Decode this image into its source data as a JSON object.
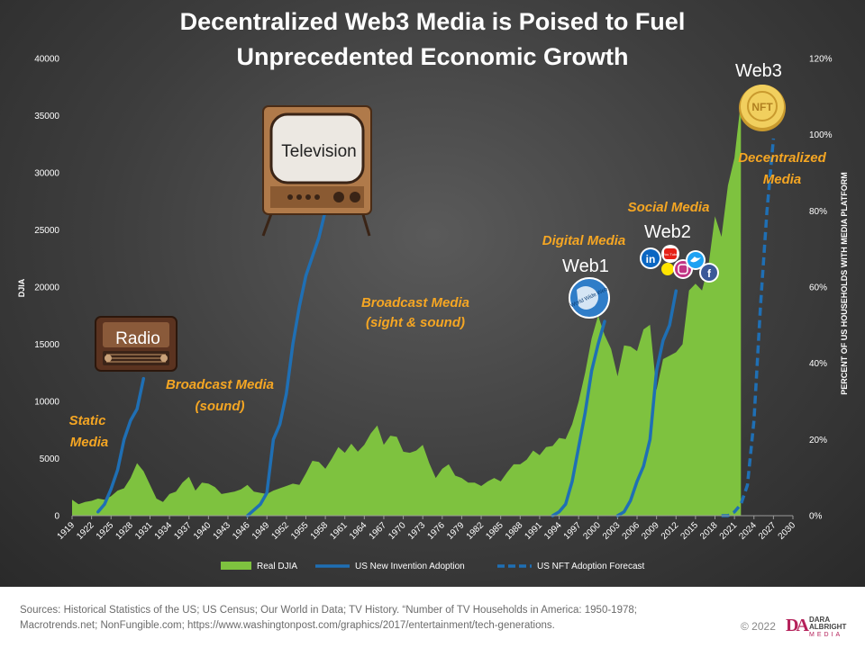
{
  "chart_data": {
    "type": "area",
    "title_lines": [
      "Decentralized  Web3 Media is Poised to Fuel",
      "Unprecedented  Economic  Growth"
    ],
    "ylabel_left": "DJIA",
    "ylabel_right": "PERCENT OF US HOUSEHOLDS WITH MEDIA PLATFORM",
    "y_left_ticks": [
      "0",
      "5000",
      "10000",
      "15000",
      "20000",
      "25000",
      "30000",
      "35000",
      "40000"
    ],
    "y_left_range": [
      0,
      40000
    ],
    "y_right_ticks": [
      "0%",
      "20%",
      "40%",
      "60%",
      "80%",
      "100%",
      "120%"
    ],
    "y_right_range": [
      0,
      120
    ],
    "x_ticks": [
      "1919",
      "1922",
      "1925",
      "1928",
      "1931",
      "1934",
      "1937",
      "1940",
      "1943",
      "1946",
      "1949",
      "1952",
      "1955",
      "1958",
      "1961",
      "1964",
      "1967",
      "1970",
      "1973",
      "1976",
      "1979",
      "1982",
      "1985",
      "1988",
      "1991",
      "1994",
      "1997",
      "2000",
      "2003",
      "2006",
      "2009",
      "2012",
      "2015",
      "2018",
      "2021",
      "2024",
      "2027",
      "2030"
    ],
    "x_range": [
      1919,
      2030
    ],
    "colors": {
      "djia": "#7ec23f",
      "adoption": "#1f6fb4",
      "forecast": "#1f6fb4",
      "annotation": "#f5a623"
    },
    "legend_position": "bottom",
    "series": [
      {
        "name": "Real DJIA",
        "axis": "left",
        "style": "area",
        "points": [
          [
            1919,
            1400
          ],
          [
            1920,
            1000
          ],
          [
            1921,
            1200
          ],
          [
            1922,
            1300
          ],
          [
            1923,
            1500
          ],
          [
            1924,
            1400
          ],
          [
            1925,
            1700
          ],
          [
            1926,
            2200
          ],
          [
            1927,
            2400
          ],
          [
            1928,
            3300
          ],
          [
            1929,
            4600
          ],
          [
            1930,
            3900
          ],
          [
            1931,
            2700
          ],
          [
            1932,
            1500
          ],
          [
            1933,
            1200
          ],
          [
            1934,
            1900
          ],
          [
            1935,
            2100
          ],
          [
            1936,
            2900
          ],
          [
            1937,
            3400
          ],
          [
            1938,
            2200
          ],
          [
            1939,
            2900
          ],
          [
            1940,
            2800
          ],
          [
            1941,
            2500
          ],
          [
            1942,
            1900
          ],
          [
            1943,
            2000
          ],
          [
            1944,
            2100
          ],
          [
            1945,
            2300
          ],
          [
            1946,
            2700
          ],
          [
            1947,
            2100
          ],
          [
            1948,
            2000
          ],
          [
            1949,
            1900
          ],
          [
            1950,
            2200
          ],
          [
            1951,
            2400
          ],
          [
            1952,
            2600
          ],
          [
            1953,
            2800
          ],
          [
            1954,
            2700
          ],
          [
            1955,
            3700
          ],
          [
            1956,
            4800
          ],
          [
            1957,
            4700
          ],
          [
            1958,
            4100
          ],
          [
            1959,
            5000
          ],
          [
            1960,
            6000
          ],
          [
            1961,
            5500
          ],
          [
            1962,
            6300
          ],
          [
            1963,
            5600
          ],
          [
            1964,
            6200
          ],
          [
            1965,
            7200
          ],
          [
            1966,
            7900
          ],
          [
            1967,
            6200
          ],
          [
            1968,
            7000
          ],
          [
            1969,
            6900
          ],
          [
            1970,
            5600
          ],
          [
            1971,
            5500
          ],
          [
            1972,
            5700
          ],
          [
            1973,
            6200
          ],
          [
            1974,
            4600
          ],
          [
            1975,
            3300
          ],
          [
            1976,
            4100
          ],
          [
            1977,
            4500
          ],
          [
            1978,
            3500
          ],
          [
            1979,
            3300
          ],
          [
            1980,
            2900
          ],
          [
            1981,
            2900
          ],
          [
            1982,
            2600
          ],
          [
            1983,
            3000
          ],
          [
            1984,
            3300
          ],
          [
            1985,
            3000
          ],
          [
            1986,
            3800
          ],
          [
            1987,
            4500
          ],
          [
            1988,
            4500
          ],
          [
            1989,
            4900
          ],
          [
            1990,
            5700
          ],
          [
            1991,
            5300
          ],
          [
            1992,
            6000
          ],
          [
            1993,
            6100
          ],
          [
            1994,
            6800
          ],
          [
            1995,
            6700
          ],
          [
            1996,
            8000
          ],
          [
            1997,
            10000
          ],
          [
            1998,
            12500
          ],
          [
            1999,
            15500
          ],
          [
            2000,
            17500
          ],
          [
            2001,
            15800
          ],
          [
            2002,
            14600
          ],
          [
            2003,
            12200
          ],
          [
            2004,
            14900
          ],
          [
            2005,
            14800
          ],
          [
            2006,
            14400
          ],
          [
            2007,
            16300
          ],
          [
            2008,
            16700
          ],
          [
            2009,
            11000
          ],
          [
            2010,
            13700
          ],
          [
            2011,
            14000
          ],
          [
            2012,
            14300
          ],
          [
            2013,
            15000
          ],
          [
            2014,
            19700
          ],
          [
            2015,
            20300
          ],
          [
            2016,
            19700
          ],
          [
            2017,
            21900
          ],
          [
            2018,
            26200
          ],
          [
            2019,
            24400
          ],
          [
            2020,
            28900
          ],
          [
            2021,
            31300
          ],
          [
            2022,
            36300
          ]
        ]
      },
      {
        "name": "US New Invention Adoption",
        "axis": "right",
        "style": "solid",
        "segments": [
          [
            [
              1923,
              1
            ],
            [
              1924,
              3
            ],
            [
              1925,
              7
            ],
            [
              1926,
              12
            ],
            [
              1927,
              20
            ],
            [
              1928,
              25
            ],
            [
              1929,
              28
            ],
            [
              1930,
              36
            ]
          ],
          [
            [
              1946,
              0
            ],
            [
              1948,
              3
            ],
            [
              1949,
              6
            ],
            [
              1950,
              20
            ],
            [
              1951,
              24
            ],
            [
              1952,
              32
            ],
            [
              1953,
              45
            ],
            [
              1954,
              55
            ],
            [
              1955,
              63
            ],
            [
              1956,
              68
            ],
            [
              1957,
              73
            ],
            [
              1958,
              80
            ]
          ],
          [
            [
              1993,
              0
            ],
            [
              1994,
              1
            ],
            [
              1995,
              3
            ],
            [
              1996,
              9
            ],
            [
              1997,
              18
            ],
            [
              1998,
              27
            ],
            [
              1999,
              38
            ],
            [
              2000,
              45
            ],
            [
              2001,
              51
            ]
          ],
          [
            [
              2003,
              0
            ],
            [
              2004,
              1
            ],
            [
              2005,
              4
            ],
            [
              2006,
              9
            ],
            [
              2007,
              13
            ],
            [
              2008,
              20
            ],
            [
              2009,
              38
            ],
            [
              2010,
              46
            ],
            [
              2011,
              50
            ],
            [
              2012,
              59
            ]
          ]
        ]
      },
      {
        "name": "US NFT Adoption Forecast",
        "axis": "right",
        "style": "dashed",
        "points": [
          [
            2019,
            0
          ],
          [
            2020,
            0
          ],
          [
            2021,
            1
          ],
          [
            2022,
            3
          ],
          [
            2023,
            8
          ],
          [
            2024,
            25
          ],
          [
            2025,
            55
          ],
          [
            2026,
            80
          ],
          [
            2027,
            99
          ]
        ]
      }
    ],
    "annotations": [
      {
        "id": "static-media",
        "lines": [
          "Static",
          "Media"
        ]
      },
      {
        "id": "broadcast-sound",
        "lines": [
          "Broadcast Media",
          "(sound)"
        ]
      },
      {
        "id": "broadcast-sight",
        "lines": [
          "Broadcast Media",
          "(sight & sound)"
        ]
      },
      {
        "id": "digital-media",
        "lines": [
          "Digital Media"
        ]
      },
      {
        "id": "social-media",
        "lines": [
          "Social Media"
        ]
      },
      {
        "id": "decentralized",
        "lines": [
          "Decentralized",
          "Media"
        ]
      }
    ],
    "platform_labels": {
      "radio": "Radio",
      "television": "Television",
      "web1": "Web1",
      "web2": "Web2",
      "web3": "Web3"
    },
    "icons": [
      "radio-icon",
      "television-icon",
      "globe-icon",
      "linkedin-icon",
      "youtube-icon",
      "snapchat-icon",
      "instagram-icon",
      "twitter-icon",
      "facebook-icon",
      "nft-coin-icon"
    ],
    "icon_labels": {
      "youtube": "You Tube",
      "linkedin": "in",
      "facebook": "f",
      "nft": "NFT"
    }
  },
  "footer": {
    "sources_line1": "Sources: Historical Statistics of the US; US Census; Our World in Data; TV History. “Number  of TV Households in America: 1950-1978;",
    "sources_line2": "Macrotrends.net; NonFungible.com; https://www.washingtonpost.com/graphics/2017/entertainment/tech-generations.",
    "copyright": "© 2022",
    "brand_mark": "DA",
    "brand_line1": "DARA",
    "brand_line2": "ALBRIGHT",
    "brand_line3": "MEDIA"
  }
}
